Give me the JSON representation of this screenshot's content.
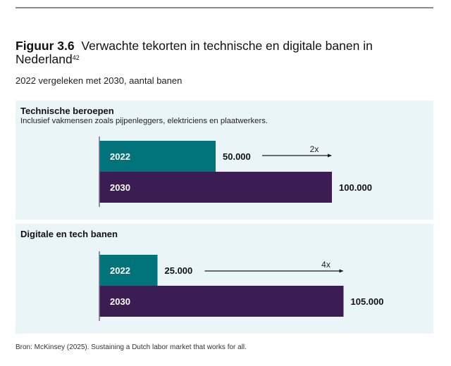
{
  "header": {
    "figure_label": "Figuur 3.6",
    "title_text": "Verwachte tekorten in technische en digitale banen in Nederland",
    "footnote_ref": "42",
    "subtitle": "2022 vergeleken met 2030, aantal banen"
  },
  "colors": {
    "bar_2022": "#00737b",
    "bar_2030": "#3b1d54",
    "panel_bg": "#eaf5f8",
    "axis": "#7a6b8a",
    "arrow": "#1a1a1a"
  },
  "chart_data": [
    {
      "type": "bar",
      "orientation": "horizontal",
      "title": "Technische beroepen",
      "subtitle": "Inclusief vakmensen zoals pijpenleggers, elektriciens en plaatwerkers.",
      "categories": [
        "2022",
        "2030"
      ],
      "values": [
        50000,
        100000
      ],
      "value_labels": [
        "50.000",
        "100.000"
      ],
      "annotation": "2x",
      "xlim": [
        0,
        105000
      ],
      "grid": false
    },
    {
      "type": "bar",
      "orientation": "horizontal",
      "title": "Digitale en tech banen",
      "subtitle": "",
      "categories": [
        "2022",
        "2030"
      ],
      "values": [
        25000,
        105000
      ],
      "value_labels": [
        "25.000",
        "105.000"
      ],
      "annotation": "4x",
      "xlim": [
        0,
        105000
      ],
      "grid": false
    }
  ],
  "source": "Bron: McKinsey (2025). Sustaining a Dutch labor market that works for all."
}
